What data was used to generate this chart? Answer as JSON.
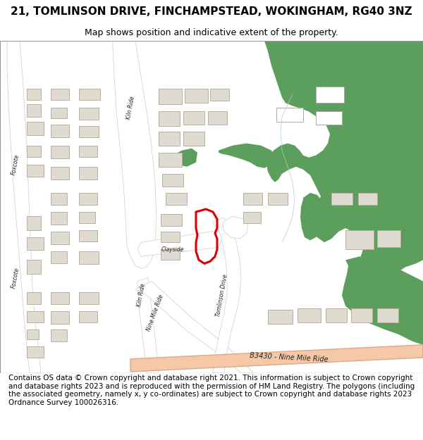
{
  "title": "21, TOMLINSON DRIVE, FINCHAMPSTEAD, WOKINGHAM, RG40 3NZ",
  "subtitle": "Map shows position and indicative extent of the property.",
  "footer": "Contains OS data © Crown copyright and database right 2021. This information is subject to Crown copyright and database rights 2023 and is reproduced with the permission of HM Land Registry. The polygons (including the associated geometry, namely x, y co-ordinates) are subject to Crown copyright and database rights 2023 Ordnance Survey 100026316.",
  "map_bg": "#f5f5f5",
  "green_color": "#5c9e5c",
  "road_color": "#f5c8a8",
  "road_border": "#dba888",
  "building_fill": "#e0dbd0",
  "building_stroke": "#b8b0a0",
  "highlight_color": "#dd0000",
  "title_fontsize": 11,
  "subtitle_fontsize": 9,
  "footer_fontsize": 7.5
}
